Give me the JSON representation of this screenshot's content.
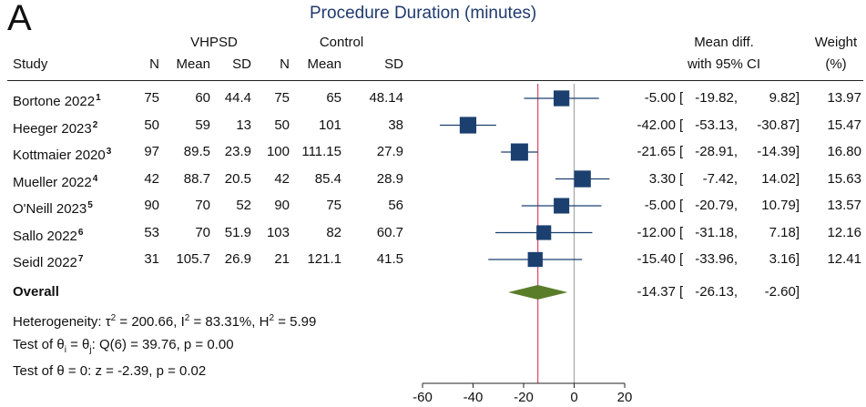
{
  "panel_label": "A",
  "chart_data": {
    "type": "forest",
    "title": "Procedure Duration (minutes)",
    "group_headers": {
      "treatment": "VHPSD",
      "control": "Control"
    },
    "columns": {
      "study": "Study",
      "n1": "N",
      "mean1": "Mean",
      "sd1": "SD",
      "n2": "N",
      "mean2": "Mean",
      "sd2": "SD",
      "effect_line1": "Mean diff.",
      "effect_line2": "with 95% CI",
      "weight_line1": "Weight",
      "weight_line2": "(%)"
    },
    "studies": [
      {
        "study": "Bortone 2022",
        "ref": "1",
        "n1": "75",
        "mean1": "60",
        "sd1": "44.4",
        "n2": "75",
        "mean2": "65",
        "sd2": "48.14",
        "es": -5.0,
        "lo": -19.82,
        "hi": 9.82,
        "es_text": "-5.00",
        "lo_text": "-19.82,",
        "hi_text": "9.82]",
        "weight": "13.97"
      },
      {
        "study": "Heeger 2023",
        "ref": "2",
        "n1": "50",
        "mean1": "59",
        "sd1": "13",
        "n2": "50",
        "mean2": "101",
        "sd2": "38",
        "es": -42.0,
        "lo": -53.13,
        "hi": -30.87,
        "es_text": "-42.00",
        "lo_text": "-53.13,",
        "hi_text": "-30.87]",
        "weight": "15.47"
      },
      {
        "study": "Kottmaier 2020",
        "ref": "3",
        "n1": "97",
        "mean1": "89.5",
        "sd1": "23.9",
        "n2": "100",
        "mean2": "111.15",
        "sd2": "27.9",
        "es": -21.65,
        "lo": -28.91,
        "hi": -14.39,
        "es_text": "-21.65",
        "lo_text": "-28.91,",
        "hi_text": "-14.39]",
        "weight": "16.80"
      },
      {
        "study": "Mueller 2022",
        "ref": "4",
        "n1": "42",
        "mean1": "88.7",
        "sd1": "20.5",
        "n2": "42",
        "mean2": "85.4",
        "sd2": "28.9",
        "es": 3.3,
        "lo": -7.42,
        "hi": 14.02,
        "es_text": "3.30",
        "lo_text": "-7.42,",
        "hi_text": "14.02]",
        "weight": "15.63"
      },
      {
        "study": "O'Neill 2023",
        "ref": "5",
        "n1": "90",
        "mean1": "70",
        "sd1": "52",
        "n2": "90",
        "mean2": "75",
        "sd2": "56",
        "es": -5.0,
        "lo": -20.79,
        "hi": 10.79,
        "es_text": "-5.00",
        "lo_text": "-20.79,",
        "hi_text": "10.79]",
        "weight": "13.57"
      },
      {
        "study": "Sallo 2022",
        "ref": "6",
        "n1": "53",
        "mean1": "70",
        "sd1": "51.9",
        "n2": "103",
        "mean2": "82",
        "sd2": "60.7",
        "es": -12.0,
        "lo": -31.18,
        "hi": 7.18,
        "es_text": "-12.00",
        "lo_text": "-31.18,",
        "hi_text": "7.18]",
        "weight": "12.16"
      },
      {
        "study": "Seidl 2022",
        "ref": "7",
        "n1": "31",
        "mean1": "105.7",
        "sd1": "26.9",
        "n2": "21",
        "mean2": "121.1",
        "sd2": "41.5",
        "es": -15.4,
        "lo": -33.96,
        "hi": 3.16,
        "es_text": "-15.40",
        "lo_text": "-33.96,",
        "hi_text": "3.16]",
        "weight": "12.41"
      }
    ],
    "overall": {
      "label": "Overall",
      "es": -14.37,
      "lo": -26.13,
      "hi": -2.6,
      "es_text": "-14.37",
      "lo_text": "-26.13,",
      "hi_text": "-2.60]"
    },
    "heterogeneity": {
      "prefix": "Heterogeneity: ",
      "tau_sym": "τ",
      "tau2": "= 200.66, ",
      "i_sym": "I",
      "i2": "= 83.31%, ",
      "h_sym": "H",
      "h2": "= 5.99",
      "sq": "2"
    },
    "test_theta_i": {
      "prefix": "Test of θ",
      "sub_i": "i",
      "mid": " = θ",
      "sub_j": "j",
      "rest": ": Q(6) = 39.76, p = 0.00"
    },
    "test_theta": "Test of θ = 0: z = -2.39, p = 0.02",
    "x_axis": {
      "ticks": [
        -60,
        -40,
        -20,
        0,
        20
      ],
      "tick_labels": [
        "-60",
        "-40",
        "-20",
        "0",
        "20"
      ],
      "xlim": [
        -60,
        20
      ]
    },
    "reference_line": 0,
    "colors": {
      "marker": "#1b4070",
      "ci_line": "#1b4070",
      "diamond": "#5a7d2a",
      "overall_line": "#e05070",
      "null_line": "#aaaaaa",
      "title": "#1f3a6e"
    }
  }
}
